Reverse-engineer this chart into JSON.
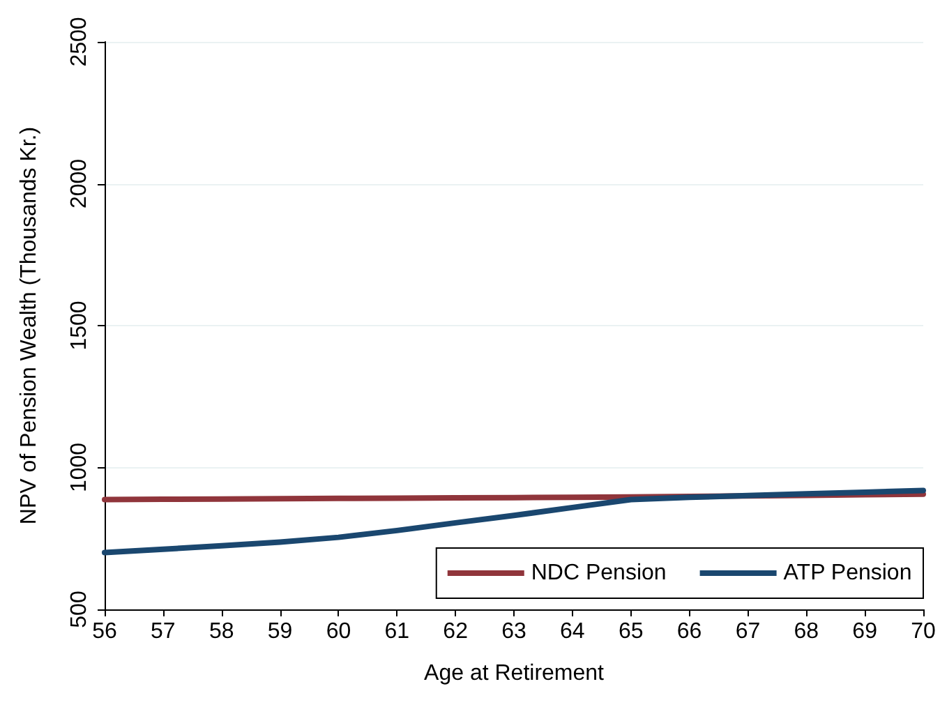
{
  "chart_data": {
    "type": "line",
    "xlabel": "Age at Retirement",
    "ylabel": "NPV of Pension Wealth (Thousands Kr.)",
    "x": [
      56,
      57,
      58,
      59,
      60,
      61,
      62,
      63,
      64,
      65,
      66,
      67,
      68,
      69,
      70
    ],
    "series": [
      {
        "name": "NDC Pension",
        "color": "#90353b",
        "values": [
          887,
          888,
          889,
          890,
          891,
          892,
          893,
          894,
          895,
          896,
          898,
          900,
          902,
          904,
          906
        ]
      },
      {
        "name": "ATP Pension",
        "color": "#1a476f",
        "values": [
          700,
          712,
          724,
          737,
          754,
          778,
          805,
          831,
          859,
          887,
          895,
          901,
          907,
          913,
          919
        ]
      }
    ],
    "xlim": [
      56,
      70
    ],
    "xticks": [
      56,
      57,
      58,
      59,
      60,
      61,
      62,
      63,
      64,
      65,
      66,
      67,
      68,
      69,
      70
    ],
    "ylim": [
      500,
      2500
    ],
    "yticks": [
      500,
      1000,
      1500,
      2000,
      2500
    ],
    "grid": "y",
    "legend": "bottom right",
    "marker": "none",
    "line_style": "solid"
  }
}
